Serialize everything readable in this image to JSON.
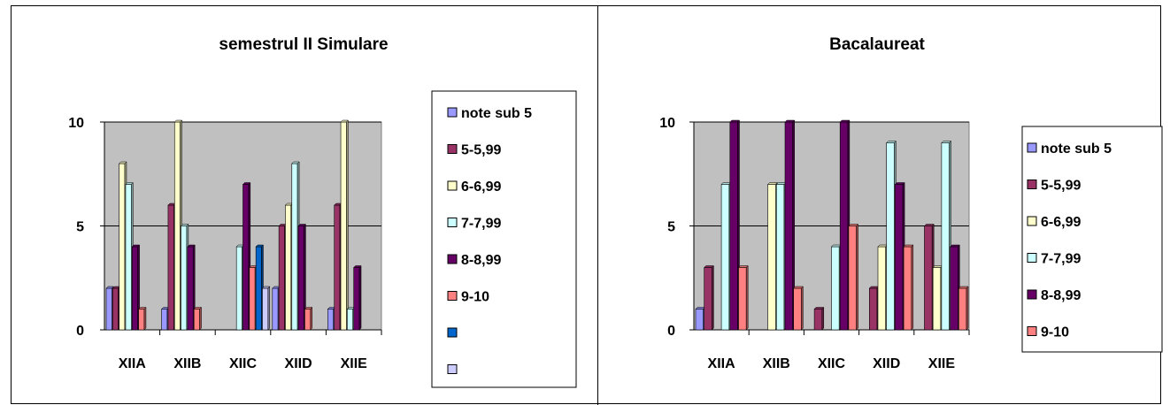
{
  "chart_data": [
    {
      "type": "bar",
      "title": "semestrul II Simulare",
      "categories": [
        "XIIA",
        "XIIB",
        "XIIC",
        "XIID",
        "XIIE"
      ],
      "ylim": [
        0,
        10
      ],
      "yticks": [
        0,
        5,
        10
      ],
      "grid": true,
      "legend_position": "right",
      "series": [
        {
          "name": "note sub 5",
          "values": [
            2,
            1,
            0,
            2,
            1
          ],
          "color": "#9999FF"
        },
        {
          "name": "5-5,99",
          "values": [
            2,
            6,
            0,
            5,
            6
          ],
          "color": "#993366"
        },
        {
          "name": "6-6,99",
          "values": [
            8,
            10,
            0,
            6,
            10
          ],
          "color": "#FFFFCC"
        },
        {
          "name": "7-7,99",
          "values": [
            7,
            5,
            4,
            8,
            1
          ],
          "color": "#CCFFFF"
        },
        {
          "name": "8-8,99",
          "values": [
            4,
            4,
            7,
            5,
            3
          ],
          "color": "#660066"
        },
        {
          "name": "9-10",
          "values": [
            1,
            1,
            3,
            1,
            0
          ],
          "color": "#FF8080"
        },
        {
          "name": "",
          "values": [
            0,
            0,
            4,
            0,
            0
          ],
          "color": "#0066CC"
        },
        {
          "name": "",
          "values": [
            0,
            0,
            2,
            0,
            0
          ],
          "color": "#CCCCFF"
        }
      ]
    },
    {
      "type": "bar",
      "title": "Bacalaureat",
      "categories": [
        "XIIA",
        "XIIB",
        "XIIC",
        "XIID",
        "XIIE"
      ],
      "ylim": [
        0,
        10
      ],
      "yticks": [
        0,
        5,
        10
      ],
      "grid": true,
      "legend_position": "right",
      "series": [
        {
          "name": "note sub 5",
          "values": [
            1,
            0,
            0,
            0,
            0
          ],
          "color": "#9999FF"
        },
        {
          "name": "5-5,99",
          "values": [
            3,
            0,
            1,
            2,
            5
          ],
          "color": "#993366"
        },
        {
          "name": "6-6,99",
          "values": [
            0,
            7,
            0,
            4,
            3
          ],
          "color": "#FFFFCC"
        },
        {
          "name": "7-7,99",
          "values": [
            7,
            7,
            4,
            9,
            9
          ],
          "color": "#CCFFFF"
        },
        {
          "name": "8-8,99",
          "values": [
            10,
            10,
            10,
            7,
            4
          ],
          "color": "#660066"
        },
        {
          "name": "9-10",
          "values": [
            3,
            2,
            5,
            4,
            2
          ],
          "color": "#FF8080"
        }
      ]
    }
  ]
}
